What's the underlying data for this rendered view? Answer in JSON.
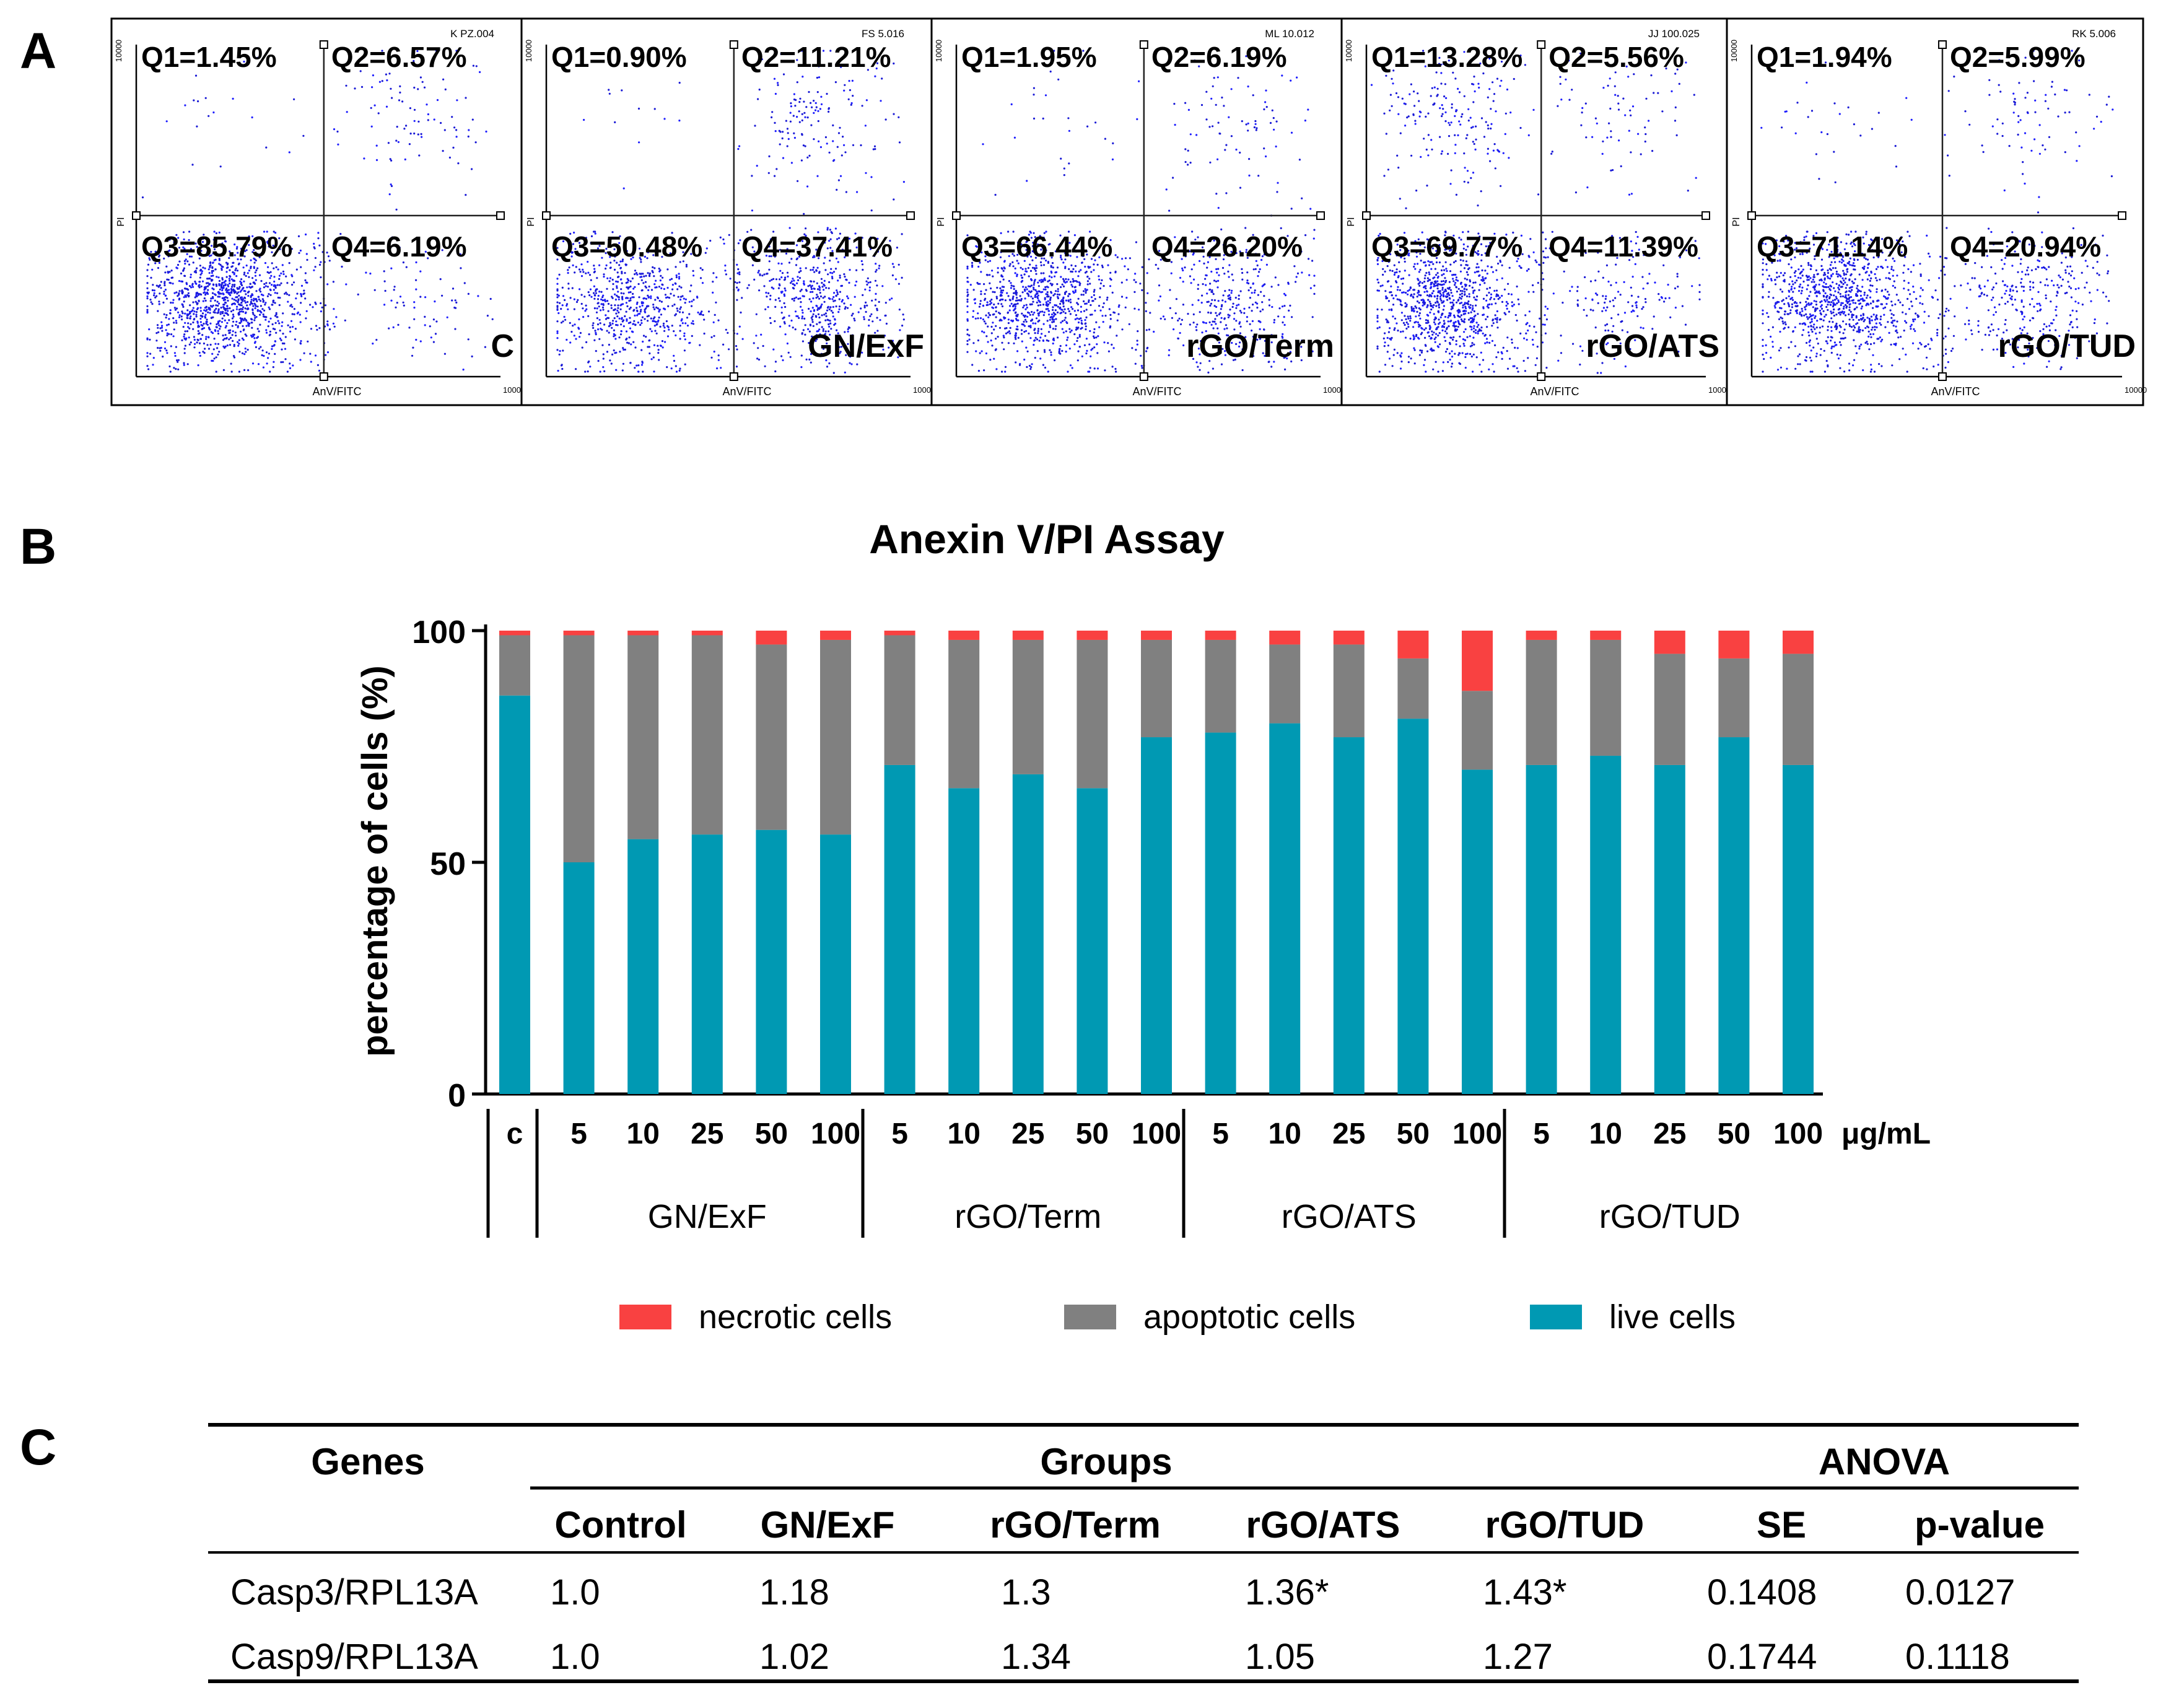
{
  "panel_labels": {
    "a": "A",
    "b": "B",
    "c": "C"
  },
  "colors": {
    "necrotic": "#f94141",
    "apoptotic": "#808080",
    "live": "#0099b3",
    "dots": "#1a1ad6",
    "dense_dots": "#1e1eff"
  },
  "panelA": {
    "x_axis_label": "AnV/FITC",
    "y_axis_label": "PI",
    "axis_max_label": "10000",
    "plots": [
      {
        "sample": "C",
        "file_label": "K PZ.004",
        "q1": "Q1=1.45%",
        "q2": "Q2=6.57%",
        "q3": "Q3=85.79%",
        "q4": "Q4=6.19%",
        "q1_pct": 1.45,
        "q2_pct": 6.57,
        "q3_pct": 85.79,
        "q4_pct": 6.19
      },
      {
        "sample": "GN/ExF",
        "file_label": "FS 5.016",
        "q1": "Q1=0.90%",
        "q2": "Q2=11.21%",
        "q3": "Q3=50.48%",
        "q4": "Q4=37.41%",
        "q1_pct": 0.9,
        "q2_pct": 11.21,
        "q3_pct": 50.48,
        "q4_pct": 37.41
      },
      {
        "sample": "rGO/Term",
        "file_label": "ML 10.012",
        "q1": "Q1=1.95%",
        "q2": "Q2=6.19%",
        "q3": "Q3=66.44%",
        "q4": "Q4=26.20%",
        "q1_pct": 1.95,
        "q2_pct": 6.19,
        "q3_pct": 66.44,
        "q4_pct": 26.2
      },
      {
        "sample": "rGO/ATS",
        "file_label": "JJ 100.025",
        "q1": "Q1=13.28%",
        "q2": "Q2=5.56%",
        "q3": "Q3=69.77%",
        "q4": "Q4=11.39%",
        "q1_pct": 13.28,
        "q2_pct": 5.56,
        "q3_pct": 69.77,
        "q4_pct": 11.39
      },
      {
        "sample": "rGO/TUD",
        "file_label": "RK 5.006",
        "q1": "Q1=1.94%",
        "q2": "Q2=5.99%",
        "q3": "Q3=71.14%",
        "q4": "Q4=20.94%",
        "q1_pct": 1.94,
        "q2_pct": 5.99,
        "q3_pct": 71.14,
        "q4_pct": 20.94
      }
    ]
  },
  "chart_data": {
    "type": "bar",
    "stacked": true,
    "title": "Anexin V/PI Assay",
    "xlabel": "",
    "ylabel": "percentage of cells (%)",
    "ylim": [
      0,
      100
    ],
    "yticks": [
      0,
      50,
      100
    ],
    "unit_label": "μg/mL",
    "categories": [
      "c",
      "5",
      "10",
      "25",
      "50",
      "100",
      "5",
      "10",
      "25",
      "50",
      "100",
      "5",
      "10",
      "25",
      "50",
      "100",
      "5",
      "10",
      "25",
      "50",
      "100"
    ],
    "groups": [
      {
        "name": "GN/ExF",
        "from": 1,
        "to": 5
      },
      {
        "name": "rGO/Term",
        "from": 6,
        "to": 10
      },
      {
        "name": "rGO/ATS",
        "from": 11,
        "to": 15
      },
      {
        "name": "rGO/TUD",
        "from": 16,
        "to": 20
      }
    ],
    "series": [
      {
        "name": "live cells",
        "values": [
          86,
          50,
          55,
          56,
          57,
          56,
          71,
          66,
          69,
          66,
          77,
          78,
          80,
          77,
          81,
          70,
          71,
          73,
          71,
          77,
          71
        ]
      },
      {
        "name": "apoptotic cells",
        "values": [
          13,
          49,
          44,
          43,
          40,
          42,
          28,
          32,
          29,
          32,
          21,
          20,
          17,
          20,
          13,
          17,
          27,
          25,
          24,
          17,
          24
        ]
      },
      {
        "name": "necrotic cells",
        "values": [
          1,
          1,
          1,
          1,
          3,
          2,
          1,
          2,
          2,
          2,
          2,
          2,
          3,
          3,
          6,
          13,
          2,
          2,
          5,
          6,
          5
        ]
      }
    ],
    "legend": [
      "necrotic cells",
      "apoptotic cells",
      "live cells"
    ]
  },
  "table": {
    "genes_header": "Genes",
    "groups_header": "Groups",
    "anova_header": "ANOVA",
    "columns": [
      "Control",
      "GN/ExF",
      "rGO/Term",
      "rGO/ATS",
      "rGO/TUD",
      "SE",
      "p-value"
    ],
    "rows": [
      {
        "gene": "Casp3/RPL13A",
        "values": [
          "1.0",
          "1.18",
          "1.3",
          "1.36*",
          "1.43*",
          "0.1408",
          "0.0127"
        ]
      },
      {
        "gene": "Casp9/RPL13A",
        "values": [
          "1.0",
          "1.02",
          "1.34",
          "1.05",
          "1.27",
          "0.1744",
          "0.1118"
        ]
      }
    ]
  }
}
